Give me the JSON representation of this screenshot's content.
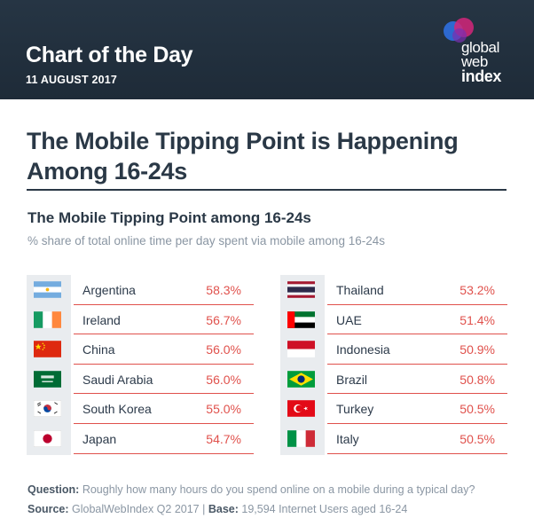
{
  "header": {
    "title": "Chart of the Day",
    "date": "11 AUGUST 2017",
    "logo_line1": "global",
    "logo_line2": "web",
    "logo_line3": "index"
  },
  "main_title": "The Mobile Tipping Point is Happening Among 16-24s",
  "chart_data": {
    "type": "table",
    "title": "The Mobile Tipping Point among 16-24s",
    "subtitle": "% share of total online time per day spent via mobile among 16-24s",
    "columns": [
      [
        {
          "country": "Argentina",
          "value": "58.3%",
          "flag": "argentina-flag"
        },
        {
          "country": "Ireland",
          "value": "56.7%",
          "flag": "ireland-flag"
        },
        {
          "country": "China",
          "value": "56.0%",
          "flag": "china-flag"
        },
        {
          "country": "Saudi Arabia",
          "value": "56.0%",
          "flag": "saudi-arabia-flag"
        },
        {
          "country": "South Korea",
          "value": "55.0%",
          "flag": "south-korea-flag"
        },
        {
          "country": "Japan",
          "value": "54.7%",
          "flag": "japan-flag"
        }
      ],
      [
        {
          "country": "Thailand",
          "value": "53.2%",
          "flag": "thailand-flag"
        },
        {
          "country": "UAE",
          "value": "51.4%",
          "flag": "uae-flag"
        },
        {
          "country": "Indonesia",
          "value": "50.9%",
          "flag": "indonesia-flag"
        },
        {
          "country": "Brazil",
          "value": "50.8%",
          "flag": "brazil-flag"
        },
        {
          "country": "Turkey",
          "value": "50.5%",
          "flag": "turkey-flag"
        },
        {
          "country": "Italy",
          "value": "50.5%",
          "flag": "italy-flag"
        }
      ]
    ]
  },
  "footer": {
    "question_label": "Question:",
    "question_text": " Roughly how many hours do you spend online on a mobile during a typical day?",
    "source_label": "Source:",
    "source_text": " GlobalWebIndex Q2 2017  |  ",
    "base_label": "Base:",
    "base_text": " 19,594 Internet Users aged 16-24"
  },
  "colors": {
    "header_bg": "#263544",
    "accent_red": "#e0514c",
    "title_text": "#2a3846",
    "muted_text": "#8a96a3",
    "flag_strip": "#e9ecef"
  }
}
